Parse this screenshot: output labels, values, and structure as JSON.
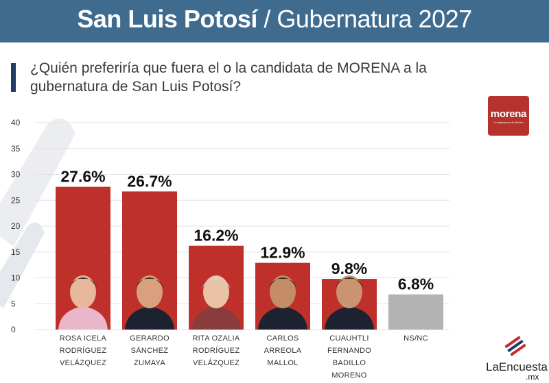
{
  "header": {
    "title_main": "San Luis Potosí",
    "title_sep": " / ",
    "title_sub": "Gubernatura 2027"
  },
  "question": "¿Quién preferiría que fuera el o la candidata de MORENA a la gubernatura de San Luis Potosí?",
  "party_logo": {
    "word": "morena",
    "tagline": "La esperanza de México"
  },
  "brand": {
    "name": "LaEncuesta",
    "ext": ".mx"
  },
  "colors": {
    "header": "#3f6b8e",
    "bar": "#c0302a",
    "bar_other": "#b3b3b3",
    "accent": "#1f3b66"
  },
  "chart_data": {
    "type": "bar",
    "categories": [
      [
        "ROSA ICELA",
        "RODRÍGUEZ",
        "VELÁZQUEZ"
      ],
      [
        "GERARDO",
        "SÁNCHEZ",
        "ZUMAYA"
      ],
      [
        "RITA OZALIA",
        "RODRÍGUEZ",
        "VELÁZQUEZ"
      ],
      [
        "CARLOS",
        "ARREOLA",
        "MALLOL"
      ],
      [
        "CUAUHTLI",
        "FERNANDO",
        "BADILLO",
        "MORENO"
      ],
      [
        "NS/NC"
      ]
    ],
    "values": [
      27.6,
      26.7,
      16.2,
      12.9,
      9.8,
      6.8
    ],
    "value_labels": [
      "27.6%",
      "26.7%",
      "16.2%",
      "12.9%",
      "9.8%",
      "6.8%"
    ],
    "yticks": [
      "0",
      "5",
      "10",
      "15",
      "20",
      "25",
      "30",
      "35",
      "40"
    ],
    "ylim": [
      0,
      40
    ],
    "grid": true
  }
}
